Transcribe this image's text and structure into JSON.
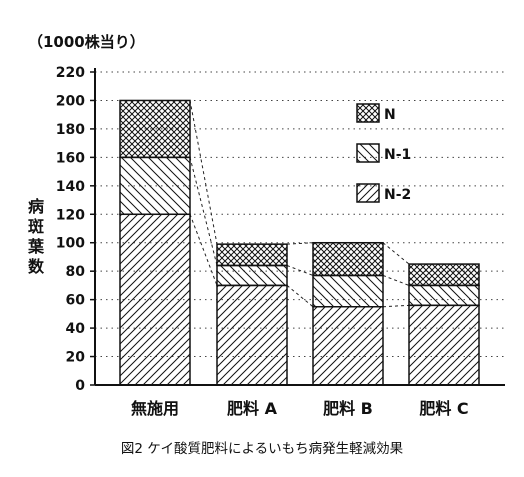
{
  "chart_data": {
    "type": "bar",
    "stacked": true,
    "unit_label": "（1000株当り）",
    "ylabel": "病斑葉数",
    "ylim": [
      0,
      220
    ],
    "yticks": [
      0,
      20,
      40,
      60,
      80,
      100,
      120,
      140,
      160,
      180,
      200,
      220
    ],
    "grid": true,
    "legend_position": "top-right",
    "categories": [
      "無施用",
      "肥料 A",
      "肥料 B",
      "肥料 C"
    ],
    "series": [
      {
        "name": "N-2",
        "values": [
          120,
          70,
          55,
          56
        ]
      },
      {
        "name": "N-1",
        "values": [
          40,
          14,
          22,
          14
        ]
      },
      {
        "name": "N",
        "values": [
          40,
          15,
          23,
          15
        ]
      }
    ]
  },
  "caption": "図2 ケイ酸質肥料によるいもち病発生軽減効果"
}
